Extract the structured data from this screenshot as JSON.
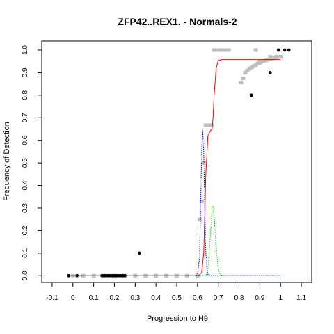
{
  "chart_data": {
    "type": "scatter",
    "title": "ZFP42..REX1. - Normals-2",
    "xlabel": "Progression to H9",
    "ylabel": "Frequency of Detection",
    "xlim": [
      -0.15,
      1.15
    ],
    "ylim": [
      -0.03,
      1.04
    ],
    "x_ticks": [
      "-0.1",
      "0",
      "0.1",
      "0.2",
      "0.3",
      "0.4",
      "0.5",
      "0.6",
      "0.7",
      "0.8",
      "0.9",
      "1",
      "1.1"
    ],
    "y_ticks": [
      "0.0",
      "0.1",
      "0.2",
      "0.3",
      "0.4",
      "0.5",
      "0.6",
      "0.7",
      "0.8",
      "0.9",
      "1.0"
    ],
    "colors": {
      "observed": "#000000",
      "smoothed": "#bebebe",
      "fit": "#ff0000",
      "density_1": "#0000ff",
      "density_2": "#00cc00",
      "density_3": "#008b8b"
    },
    "series": [
      {
        "name": "",
        "kind": "points",
        "color": "#000000",
        "points": [
          [
            -0.02,
            0
          ],
          [
            0.02,
            0
          ],
          [
            0.14,
            0
          ],
          [
            0.15,
            0
          ],
          [
            0.16,
            0
          ],
          [
            0.17,
            0
          ],
          [
            0.18,
            0
          ],
          [
            0.19,
            0
          ],
          [
            0.2,
            0
          ],
          [
            0.21,
            0
          ],
          [
            0.22,
            0
          ],
          [
            0.23,
            0
          ],
          [
            0.24,
            0
          ],
          [
            0.25,
            0
          ],
          [
            0.32,
            0.1
          ],
          [
            0.86,
            0.8
          ],
          [
            0.95,
            0.9
          ],
          [
            0.99,
            1.0
          ],
          [
            1.02,
            1.0
          ],
          [
            1.04,
            1.0
          ]
        ]
      },
      {
        "name": "",
        "kind": "smoothed-points",
        "color": "#bebebe",
        "points": [
          [
            0.0,
            0
          ],
          [
            0.05,
            0
          ],
          [
            0.1,
            0
          ],
          [
            0.15,
            0
          ],
          [
            0.2,
            0
          ],
          [
            0.25,
            0
          ],
          [
            0.3,
            0
          ],
          [
            0.35,
            0
          ],
          [
            0.4,
            0
          ],
          [
            0.45,
            0
          ],
          [
            0.5,
            0
          ],
          [
            0.55,
            0
          ],
          [
            0.6,
            0
          ],
          [
            0.61,
            0.25
          ],
          [
            0.62,
            0.33
          ],
          [
            0.63,
            0.5
          ],
          [
            0.64,
            0.667
          ],
          [
            0.65,
            0.667
          ],
          [
            0.66,
            0.667
          ],
          [
            0.67,
            0.667
          ],
          [
            0.68,
            1.0
          ],
          [
            0.69,
            1.0
          ],
          [
            0.7,
            1.0
          ],
          [
            0.71,
            1.0
          ],
          [
            0.72,
            1.0
          ],
          [
            0.73,
            1.0
          ],
          [
            0.74,
            1.0
          ],
          [
            0.75,
            1.0
          ],
          [
            0.81,
            0.857
          ],
          [
            0.82,
            0.875
          ],
          [
            0.83,
            0.9
          ],
          [
            0.84,
            0.909
          ],
          [
            0.85,
            0.917
          ],
          [
            0.86,
            0.923
          ],
          [
            0.87,
            0.929
          ],
          [
            0.88,
            0.933
          ],
          [
            0.89,
            0.941
          ],
          [
            0.9,
            0.944
          ],
          [
            0.91,
            0.95
          ],
          [
            0.92,
            0.952
          ],
          [
            0.93,
            0.955
          ],
          [
            0.94,
            0.958
          ],
          [
            0.95,
            0.96
          ],
          [
            0.96,
            0.963
          ],
          [
            0.97,
            0.966
          ],
          [
            0.98,
            0.968
          ],
          [
            0.99,
            0.97
          ],
          [
            1.0,
            0.971
          ],
          [
            0.88,
            1.0
          ],
          [
            0.9,
            0.95
          ],
          [
            0.95,
            0.97
          ],
          [
            0.98,
            0.97
          ]
        ]
      },
      {
        "name": "",
        "kind": "line",
        "color": "#ff0000",
        "dash": "solid",
        "points": [
          [
            -0.02,
            0
          ],
          [
            0.1,
            0
          ],
          [
            0.3,
            0
          ],
          [
            0.5,
            0
          ],
          [
            0.6,
            0
          ],
          [
            0.61,
            0.003
          ],
          [
            0.62,
            0.015
          ],
          [
            0.63,
            0.1
          ],
          [
            0.64,
            0.45
          ],
          [
            0.65,
            0.62
          ],
          [
            0.66,
            0.64
          ],
          [
            0.67,
            0.65
          ],
          [
            0.675,
            0.7
          ],
          [
            0.68,
            0.8
          ],
          [
            0.69,
            0.92
          ],
          [
            0.7,
            0.955
          ],
          [
            0.72,
            0.958
          ],
          [
            0.8,
            0.958
          ],
          [
            0.9,
            0.958
          ],
          [
            1.0,
            0.958
          ]
        ]
      },
      {
        "name": "",
        "kind": "line",
        "color": "#0000ff",
        "dash": "dotted",
        "points": [
          [
            -0.02,
            0
          ],
          [
            0.5,
            0
          ],
          [
            0.59,
            0
          ],
          [
            0.6,
            0.005
          ],
          [
            0.61,
            0.08
          ],
          [
            0.615,
            0.3
          ],
          [
            0.62,
            0.55
          ],
          [
            0.625,
            0.645
          ],
          [
            0.63,
            0.55
          ],
          [
            0.635,
            0.3
          ],
          [
            0.64,
            0.1
          ],
          [
            0.645,
            0.03
          ],
          [
            0.65,
            0.005
          ],
          [
            0.66,
            0
          ],
          [
            1.0,
            0
          ]
        ]
      },
      {
        "name": "",
        "kind": "line",
        "color": "#00cc00",
        "dash": "dotted",
        "points": [
          [
            -0.02,
            0
          ],
          [
            0.6,
            0
          ],
          [
            0.64,
            0
          ],
          [
            0.65,
            0.03
          ],
          [
            0.66,
            0.15
          ],
          [
            0.67,
            0.3
          ],
          [
            0.675,
            0.31
          ],
          [
            0.68,
            0.27
          ],
          [
            0.69,
            0.12
          ],
          [
            0.7,
            0.03
          ],
          [
            0.71,
            0.005
          ],
          [
            0.72,
            0
          ],
          [
            1.0,
            0
          ]
        ]
      },
      {
        "name": "",
        "kind": "line",
        "color": "#008b8b",
        "dash": "dotted",
        "points": [
          [
            -0.02,
            0
          ],
          [
            1.0,
            0
          ]
        ]
      }
    ]
  }
}
